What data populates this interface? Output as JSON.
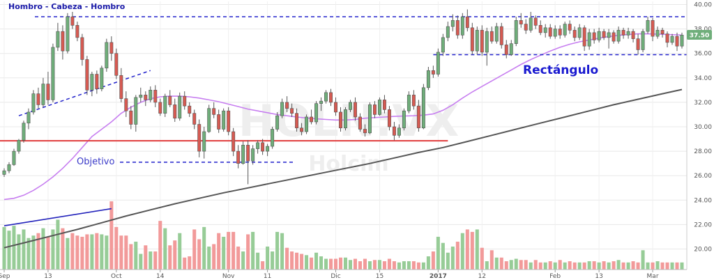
{
  "chart_data": {
    "type": "candlestick",
    "watermark_symbol": "HOLN:VX",
    "watermark_name": "Holcim",
    "colors": {
      "up": "#6fae7a",
      "down": "#d65a52",
      "vol_up": "#97cc97",
      "vol_down": "#f29a9a",
      "sma50": "#c77ef0",
      "sma200": "#555555",
      "hline": "#e03c3c",
      "dashed": "#2222cc",
      "price_tag": "#6fae7a",
      "grid": "#e8e8e8"
    },
    "y_ticks": [
      "40.00",
      "38.00",
      "36.00",
      "34.00",
      "32.00",
      "30.00",
      "28.00",
      "26.00",
      "24.00",
      "22.00",
      "20.00"
    ],
    "y_min": 18.5,
    "y_max": 40.3,
    "x_labels": [
      {
        "text": "Sep",
        "i": 0
      },
      {
        "text": "13",
        "i": 9
      },
      {
        "text": "Oct",
        "i": 23
      },
      {
        "text": "14",
        "i": 32
      },
      {
        "text": "Nov",
        "i": 46
      },
      {
        "text": "11",
        "i": 54
      },
      {
        "text": "Dic",
        "i": 68
      },
      {
        "text": "15",
        "i": 77
      },
      {
        "text": "2017",
        "i": 89
      },
      {
        "text": "12",
        "i": 98
      },
      {
        "text": "Feb",
        "i": 113
      },
      {
        "text": "13",
        "i": 122
      },
      {
        "text": "Mar",
        "i": 133
      }
    ],
    "last_price": "37.50",
    "annotations": {
      "hcs": "Hombro - Cabeza - Hombro",
      "rect": "Rectángulo",
      "objetivo": "Objetivo"
    },
    "levels": {
      "hcs_top": 39.0,
      "rect_top": 39.0,
      "rect_bottom": 35.9,
      "objetivo": 27.1,
      "support": 28.85
    },
    "ohlc": [
      [
        26.1,
        26.6,
        25.9,
        26.4
      ],
      [
        26.4,
        27.1,
        26.2,
        26.9
      ],
      [
        26.9,
        28.2,
        26.8,
        28.0
      ],
      [
        28.0,
        29.0,
        27.8,
        28.9
      ],
      [
        28.9,
        30.5,
        28.7,
        30.3
      ],
      [
        30.3,
        31.5,
        29.8,
        31.2
      ],
      [
        31.2,
        33.0,
        31.0,
        32.7
      ],
      [
        32.7,
        33.2,
        31.5,
        31.8
      ],
      [
        31.8,
        34.0,
        31.6,
        33.5
      ],
      [
        33.5,
        34.5,
        31.8,
        32.2
      ],
      [
        32.2,
        36.8,
        32.0,
        36.5
      ],
      [
        36.5,
        38.5,
        36.2,
        37.8
      ],
      [
        37.8,
        38.3,
        35.5,
        36.2
      ],
      [
        36.2,
        39.3,
        36.0,
        39.0
      ],
      [
        39.0,
        39.4,
        38.0,
        38.3
      ],
      [
        38.3,
        38.6,
        37.0,
        37.3
      ],
      [
        37.3,
        37.6,
        35.0,
        35.5
      ],
      [
        35.5,
        35.8,
        32.6,
        33.0
      ],
      [
        33.0,
        34.5,
        32.5,
        34.3
      ],
      [
        34.3,
        34.6,
        32.7,
        33.1
      ],
      [
        33.1,
        35.0,
        32.9,
        34.8
      ],
      [
        34.8,
        37.2,
        34.5,
        36.9
      ],
      [
        36.9,
        37.4,
        35.4,
        36.0
      ],
      [
        36.0,
        36.4,
        33.9,
        34.2
      ],
      [
        34.2,
        34.8,
        32.0,
        32.3
      ],
      [
        32.3,
        32.9,
        30.8,
        31.3
      ],
      [
        31.3,
        31.7,
        29.8,
        30.2
      ],
      [
        30.2,
        32.6,
        29.6,
        32.4
      ],
      [
        32.4,
        33.2,
        32.0,
        32.6
      ],
      [
        32.6,
        32.9,
        31.7,
        32.2
      ],
      [
        32.2,
        33.3,
        32.0,
        33.0
      ],
      [
        33.0,
        33.4,
        31.6,
        32.0
      ],
      [
        32.0,
        32.3,
        30.9,
        31.1
      ],
      [
        31.1,
        32.7,
        30.8,
        32.5
      ],
      [
        32.5,
        33.0,
        31.6,
        31.8
      ],
      [
        31.8,
        32.3,
        30.4,
        30.7
      ],
      [
        30.7,
        32.8,
        30.5,
        32.5
      ],
      [
        32.5,
        32.9,
        31.4,
        31.7
      ],
      [
        31.7,
        32.0,
        30.8,
        31.1
      ],
      [
        31.1,
        31.4,
        29.8,
        30.2
      ],
      [
        30.2,
        30.6,
        27.5,
        28.0
      ],
      [
        28.0,
        30.0,
        27.4,
        29.6
      ],
      [
        29.6,
        31.8,
        29.5,
        31.5
      ],
      [
        31.5,
        32.0,
        30.7,
        31.0
      ],
      [
        31.0,
        31.4,
        29.5,
        29.8
      ],
      [
        29.8,
        31.5,
        29.6,
        31.3
      ],
      [
        31.3,
        31.6,
        29.3,
        29.6
      ],
      [
        29.6,
        29.9,
        27.6,
        28.0
      ],
      [
        28.0,
        28.5,
        26.6,
        27.0
      ],
      [
        27.0,
        28.8,
        26.9,
        28.5
      ],
      [
        28.5,
        28.9,
        25.3,
        27.2
      ],
      [
        27.2,
        28.5,
        26.9,
        28.2
      ],
      [
        28.2,
        28.9,
        27.8,
        28.7
      ],
      [
        28.7,
        29.0,
        27.7,
        28.0
      ],
      [
        28.0,
        28.6,
        27.6,
        28.4
      ],
      [
        28.4,
        30.0,
        28.2,
        29.8
      ],
      [
        29.8,
        31.2,
        29.6,
        30.9
      ],
      [
        30.9,
        32.3,
        30.7,
        32.0
      ],
      [
        32.0,
        32.5,
        31.2,
        31.5
      ],
      [
        31.5,
        31.9,
        30.8,
        31.1
      ],
      [
        31.1,
        31.5,
        29.6,
        29.9
      ],
      [
        29.9,
        30.3,
        29.3,
        29.6
      ],
      [
        29.6,
        31.0,
        29.4,
        30.8
      ],
      [
        30.8,
        31.4,
        30.2,
        30.4
      ],
      [
        30.4,
        32.1,
        30.2,
        31.9
      ],
      [
        31.9,
        32.4,
        31.3,
        32.1
      ],
      [
        32.1,
        33.0,
        31.9,
        32.8
      ],
      [
        32.8,
        33.1,
        31.7,
        32.0
      ],
      [
        32.0,
        32.4,
        30.9,
        31.2
      ],
      [
        31.2,
        31.6,
        29.6,
        29.9
      ],
      [
        29.9,
        31.6,
        29.7,
        31.4
      ],
      [
        31.4,
        32.2,
        31.2,
        32.0
      ],
      [
        32.0,
        32.4,
        30.5,
        30.8
      ],
      [
        30.8,
        31.1,
        29.6,
        29.8
      ],
      [
        29.8,
        30.2,
        29.2,
        29.5
      ],
      [
        29.5,
        32.0,
        29.4,
        31.8
      ],
      [
        31.8,
        32.1,
        30.7,
        31.0
      ],
      [
        31.0,
        32.4,
        30.9,
        32.2
      ],
      [
        32.2,
        32.6,
        31.1,
        31.4
      ],
      [
        31.4,
        31.7,
        29.7,
        30.0
      ],
      [
        30.0,
        30.4,
        28.9,
        29.3
      ],
      [
        29.3,
        30.2,
        29.1,
        29.9
      ],
      [
        29.9,
        31.5,
        29.7,
        31.3
      ],
      [
        31.3,
        32.9,
        31.1,
        32.6
      ],
      [
        32.6,
        33.0,
        31.4,
        31.7
      ],
      [
        31.7,
        32.2,
        29.6,
        29.9
      ],
      [
        29.9,
        33.5,
        29.8,
        33.2
      ],
      [
        33.2,
        34.9,
        33.0,
        34.6
      ],
      [
        34.6,
        35.0,
        34.0,
        34.3
      ],
      [
        34.3,
        36.4,
        34.1,
        36.1
      ],
      [
        36.1,
        37.6,
        35.8,
        37.3
      ],
      [
        37.3,
        38.6,
        37.0,
        38.2
      ],
      [
        38.2,
        39.2,
        37.8,
        38.7
      ],
      [
        38.7,
        39.1,
        37.2,
        37.5
      ],
      [
        37.5,
        39.3,
        37.2,
        39.0
      ],
      [
        39.0,
        39.6,
        37.8,
        38.1
      ],
      [
        38.1,
        38.5,
        35.9,
        36.2
      ],
      [
        36.2,
        38.2,
        35.9,
        37.9
      ],
      [
        37.9,
        38.3,
        35.8,
        36.1
      ],
      [
        36.1,
        38.1,
        35.0,
        37.8
      ],
      [
        37.8,
        38.2,
        36.8,
        37.0
      ],
      [
        37.0,
        38.5,
        36.8,
        38.2
      ],
      [
        38.2,
        38.5,
        36.4,
        36.7
      ],
      [
        36.7,
        37.1,
        35.6,
        35.9
      ],
      [
        35.9,
        37.1,
        35.8,
        36.8
      ],
      [
        36.8,
        39.0,
        36.6,
        38.7
      ],
      [
        38.7,
        39.3,
        38.1,
        38.4
      ],
      [
        38.4,
        38.8,
        37.6,
        37.9
      ],
      [
        37.9,
        39.4,
        37.7,
        38.9
      ],
      [
        38.9,
        39.1,
        38.0,
        38.3
      ],
      [
        38.3,
        38.7,
        37.5,
        37.7
      ],
      [
        37.7,
        38.4,
        37.3,
        38.1
      ],
      [
        38.1,
        38.4,
        37.2,
        37.4
      ],
      [
        37.4,
        38.3,
        37.2,
        38.0
      ],
      [
        38.0,
        38.3,
        37.2,
        37.5
      ],
      [
        37.5,
        38.6,
        37.3,
        38.4
      ],
      [
        38.4,
        38.7,
        37.6,
        37.9
      ],
      [
        37.9,
        38.2,
        37.0,
        37.3
      ],
      [
        37.3,
        38.4,
        37.1,
        38.1
      ],
      [
        38.1,
        38.3,
        36.2,
        36.6
      ],
      [
        36.6,
        38.0,
        36.3,
        37.7
      ],
      [
        37.7,
        38.0,
        36.8,
        37.1
      ],
      [
        37.1,
        38.1,
        36.9,
        37.8
      ],
      [
        37.8,
        38.0,
        37.1,
        37.3
      ],
      [
        37.3,
        38.0,
        36.4,
        37.7
      ],
      [
        37.7,
        37.9,
        36.8,
        37.0
      ],
      [
        37.0,
        38.2,
        36.8,
        37.9
      ],
      [
        37.9,
        38.1,
        37.2,
        37.5
      ],
      [
        37.5,
        38.1,
        37.2,
        37.8
      ],
      [
        37.8,
        38.0,
        36.9,
        37.2
      ],
      [
        37.2,
        37.6,
        35.9,
        36.3
      ],
      [
        36.3,
        38.0,
        36.1,
        37.8
      ],
      [
        37.8,
        39.0,
        37.6,
        38.7
      ],
      [
        38.7,
        38.9,
        37.0,
        37.4
      ],
      [
        37.4,
        38.2,
        37.2,
        37.9
      ],
      [
        37.9,
        38.1,
        37.3,
        37.6
      ],
      [
        37.6,
        37.8,
        36.5,
        36.9
      ],
      [
        36.9,
        37.6,
        36.7,
        37.4
      ],
      [
        37.4,
        37.7,
        36.2,
        36.6
      ],
      [
        36.6,
        37.7,
        36.4,
        37.5
      ]
    ],
    "volume": [
      21.8,
      21.5,
      21.9,
      21.2,
      21.6,
      20.9,
      21.1,
      21.3,
      21.7,
      21.0,
      21.6,
      22.4,
      21.7,
      20.9,
      21.3,
      21.1,
      21.0,
      21.2,
      21.2,
      21.3,
      21.2,
      21.1,
      23.9,
      21.8,
      21.1,
      21.1,
      20.4,
      20.6,
      19.6,
      20.3,
      19.8,
      19.8,
      22.3,
      21.7,
      20.3,
      20.7,
      21.3,
      19.3,
      19.4,
      21.6,
      20.8,
      21.8,
      20.2,
      20.4,
      21.3,
      21.0,
      21.4,
      21.4,
      20.2,
      19.8,
      21.2,
      21.4,
      19.7,
      19.0,
      20.2,
      19.8,
      21.4,
      21.3,
      20.1,
      19.8,
      19.7,
      19.6,
      19.5,
      19.3,
      19.7,
      19.4,
      19.2,
      19.2,
      19.2,
      19.3,
      19.3,
      19.1,
      19.2,
      19.0,
      19.2,
      19.0,
      19.1,
      19.1,
      19.0,
      19.2,
      19.0,
      18.9,
      19.0,
      19.0,
      19.0,
      18.9,
      18.9,
      19.4,
      19.8,
      21.0,
      20.5,
      19.7,
      20.2,
      20.6,
      21.3,
      21.6,
      21.4,
      21.6,
      20.1,
      19.0,
      19.9,
      19.3,
      19.3,
      19.0,
      19.1,
      19.2,
      19.1,
      19.1,
      18.9,
      19.1,
      18.9,
      18.9,
      19.0,
      18.9,
      19.1,
      18.9,
      19.0,
      18.9,
      18.9,
      18.9,
      19.0,
      19.0,
      18.9,
      19.0,
      18.9,
      19.0,
      19.1,
      18.9,
      18.9,
      19.0,
      18.9,
      19.9,
      18.9,
      18.9,
      19.0,
      18.9,
      18.9,
      18.9,
      18.9,
      18.9
    ],
    "sma50": [
      [
        0,
        24.05
      ],
      [
        2,
        24.15
      ],
      [
        4,
        24.4
      ],
      [
        6,
        24.8
      ],
      [
        8,
        25.3
      ],
      [
        10,
        25.9
      ],
      [
        12,
        26.6
      ],
      [
        14,
        27.4
      ],
      [
        16,
        28.3
      ],
      [
        18,
        29.2
      ],
      [
        20,
        29.8
      ],
      [
        22,
        30.4
      ],
      [
        24,
        31.1
      ],
      [
        26,
        31.6
      ],
      [
        28,
        32.0
      ],
      [
        30,
        32.3
      ],
      [
        32,
        32.45
      ],
      [
        34,
        32.5
      ],
      [
        36,
        32.5
      ],
      [
        38,
        32.45
      ],
      [
        40,
        32.35
      ],
      [
        42,
        32.2
      ],
      [
        44,
        32.05
      ],
      [
        46,
        31.85
      ],
      [
        48,
        31.65
      ],
      [
        50,
        31.45
      ],
      [
        52,
        31.3
      ],
      [
        54,
        31.15
      ],
      [
        56,
        31.0
      ],
      [
        58,
        30.9
      ],
      [
        60,
        30.8
      ],
      [
        62,
        30.72
      ],
      [
        64,
        30.65
      ],
      [
        66,
        30.6
      ],
      [
        68,
        30.55
      ],
      [
        70,
        30.55
      ],
      [
        72,
        30.6
      ],
      [
        74,
        30.7
      ],
      [
        76,
        30.75
      ],
      [
        78,
        30.8
      ],
      [
        80,
        30.85
      ],
      [
        82,
        30.88
      ],
      [
        84,
        30.9
      ],
      [
        86,
        30.95
      ],
      [
        88,
        31.05
      ],
      [
        90,
        31.35
      ],
      [
        92,
        31.8
      ],
      [
        94,
        32.35
      ],
      [
        96,
        32.85
      ],
      [
        98,
        33.3
      ],
      [
        100,
        33.75
      ],
      [
        102,
        34.2
      ],
      [
        104,
        34.65
      ],
      [
        106,
        35.1
      ],
      [
        108,
        35.5
      ],
      [
        110,
        35.85
      ],
      [
        112,
        36.2
      ],
      [
        114,
        36.5
      ],
      [
        116,
        36.75
      ],
      [
        118,
        36.95
      ],
      [
        120,
        37.1
      ],
      [
        122,
        37.25
      ],
      [
        124,
        37.38
      ],
      [
        126,
        37.48
      ],
      [
        128,
        37.55
      ],
      [
        130,
        37.6
      ],
      [
        132,
        37.6
      ],
      [
        134,
        37.58
      ],
      [
        136,
        37.55
      ],
      [
        138,
        37.52
      ],
      [
        139,
        37.5
      ]
    ],
    "sma200": [
      [
        0,
        20.1
      ],
      [
        5,
        20.6
      ],
      [
        10,
        21.1
      ],
      [
        15,
        21.6
      ],
      [
        20,
        22.15
      ],
      [
        25,
        22.7
      ],
      [
        30,
        23.2
      ],
      [
        35,
        23.7
      ],
      [
        40,
        24.15
      ],
      [
        45,
        24.6
      ],
      [
        50,
        25.0
      ],
      [
        55,
        25.4
      ],
      [
        60,
        25.8
      ],
      [
        65,
        26.2
      ],
      [
        70,
        26.6
      ],
      [
        75,
        27.0
      ],
      [
        80,
        27.45
      ],
      [
        85,
        27.9
      ],
      [
        90,
        28.3
      ],
      [
        95,
        28.8
      ],
      [
        100,
        29.3
      ],
      [
        105,
        29.8
      ],
      [
        110,
        30.3
      ],
      [
        115,
        30.8
      ],
      [
        120,
        31.3
      ],
      [
        125,
        31.8
      ],
      [
        130,
        32.25
      ],
      [
        135,
        32.7
      ],
      [
        139,
        33.05
      ]
    ],
    "neckline": [
      [
        3,
        30.9
      ],
      [
        30,
        34.6
      ]
    ],
    "volume_trend": [
      [
        0,
        21.9
      ],
      [
        22,
        23.3
      ]
    ]
  }
}
